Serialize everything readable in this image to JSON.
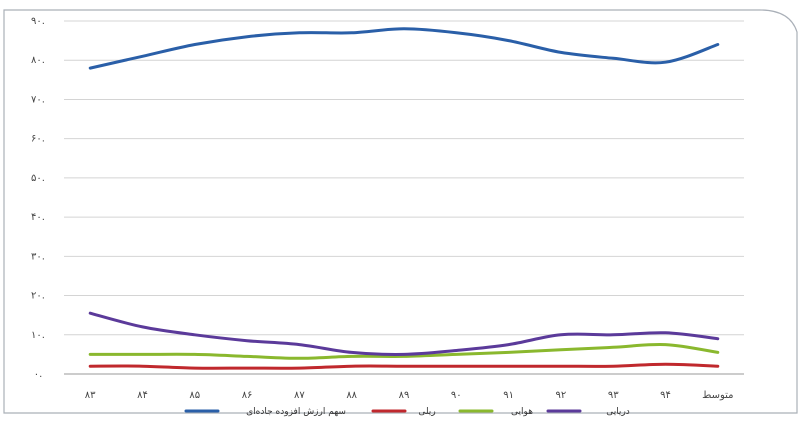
{
  "chart_data": {
    "type": "line",
    "categories": [
      "۸۳",
      "۸۴",
      "۸۵",
      "۸۶",
      "۸۷",
      "۸۸",
      "۸۹",
      "۹۰",
      "۹۱",
      "۹۲",
      "۹۳",
      "۹۴",
      "متوسط"
    ],
    "yticks": [
      {
        "value": 0.0,
        "label": "۰."
      },
      {
        "value": 0.1,
        "label": "۱۰."
      },
      {
        "value": 0.2,
        "label": "۲۰."
      },
      {
        "value": 0.3,
        "label": "۳۰."
      },
      {
        "value": 0.4,
        "label": "۴۰."
      },
      {
        "value": 0.5,
        "label": "۵۰."
      },
      {
        "value": 0.6,
        "label": "۶۰."
      },
      {
        "value": 0.7,
        "label": "۷۰."
      },
      {
        "value": 0.8,
        "label": "۸۰."
      },
      {
        "value": 0.9,
        "label": "۹۰."
      }
    ],
    "ylim": [
      0,
      0.9
    ],
    "grid": true,
    "legend_position": "bottom",
    "series": [
      {
        "name": "سهم ارزش افزوده جاده‌ای",
        "color": "#2a5fa8",
        "values": [
          0.78,
          0.81,
          0.84,
          0.86,
          0.87,
          0.87,
          0.88,
          0.87,
          0.85,
          0.82,
          0.805,
          0.795,
          0.84
        ]
      },
      {
        "name": "ریلی",
        "color": "#c0282d",
        "values": [
          0.02,
          0.02,
          0.015,
          0.015,
          0.015,
          0.02,
          0.02,
          0.02,
          0.02,
          0.02,
          0.02,
          0.025,
          0.02
        ]
      },
      {
        "name": "هوایی",
        "color": "#8ab82e",
        "values": [
          0.05,
          0.05,
          0.05,
          0.045,
          0.04,
          0.045,
          0.045,
          0.05,
          0.055,
          0.062,
          0.068,
          0.075,
          0.055
        ]
      },
      {
        "name": "دریایی",
        "color": "#5b3a9a",
        "values": [
          0.155,
          0.12,
          0.1,
          0.085,
          0.075,
          0.055,
          0.05,
          0.06,
          0.075,
          0.1,
          0.1,
          0.105,
          0.09
        ]
      }
    ]
  }
}
